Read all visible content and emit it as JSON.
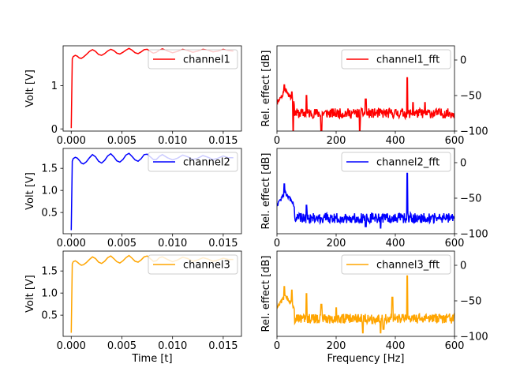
{
  "chart_data": [
    {
      "type": "line",
      "panel": "time",
      "channel": "channel1",
      "color": "#ff0000",
      "series": [
        {
          "name": "channel1",
          "x": [
            0,
            0.0001,
            0.0002,
            0.0004,
            0.0006,
            0.0008,
            0.001,
            0.0012,
            0.0015,
            0.0018,
            0.0021,
            0.0024,
            0.0027,
            0.003,
            0.0033,
            0.0036,
            0.0039,
            0.0042,
            0.0045,
            0.0048,
            0.0051,
            0.0054,
            0.0057,
            0.006,
            0.0063,
            0.0066,
            0.0069,
            0.0072,
            0.0075,
            0.0078,
            0.0081,
            0.0084,
            0.0087,
            0.009,
            0.0095,
            0.01,
            0.0105,
            0.011,
            0.0115,
            0.012,
            0.0125,
            0.013,
            0.0135,
            0.014,
            0.0145,
            0.015,
            0.0155,
            0.016
          ],
          "y": [
            0.02,
            1.62,
            1.67,
            1.7,
            1.68,
            1.64,
            1.63,
            1.66,
            1.72,
            1.79,
            1.83,
            1.79,
            1.72,
            1.7,
            1.74,
            1.8,
            1.84,
            1.81,
            1.75,
            1.73,
            1.77,
            1.82,
            1.86,
            1.82,
            1.76,
            1.74,
            1.78,
            1.83,
            1.84,
            1.79,
            1.75,
            1.77,
            1.82,
            1.85,
            1.8,
            1.76,
            1.79,
            1.84,
            1.81,
            1.77,
            1.8,
            1.84,
            1.82,
            1.78,
            1.8,
            1.84,
            1.81,
            1.8
          ]
        }
      ],
      "xlim": [
        -0.0008,
        0.0168
      ],
      "ylim": [
        -0.05,
        1.92
      ],
      "xticks": [
        "0.000",
        "0.005",
        "0.010",
        "0.015"
      ],
      "xtick_values": [
        0,
        0.005,
        0.01,
        0.015
      ],
      "yticks": [
        "0",
        "1"
      ],
      "ytick_values": [
        0,
        1
      ],
      "ylabel": "Volt [V]",
      "xlabel": "",
      "legend_loc": "upper right"
    },
    {
      "type": "line",
      "panel": "fft",
      "channel": "channel1_fft",
      "color": "#ff0000",
      "series": [
        {
          "name": "channel1_fft"
        }
      ],
      "fft_model": {
        "peaks": [
          [
            25,
            -35
          ],
          [
            50,
            -45
          ],
          [
            100,
            -50
          ],
          [
            150,
            -55
          ],
          [
            300,
            -55
          ],
          [
            440,
            -25
          ],
          [
            460,
            -60
          ],
          [
            500,
            -60
          ]
        ],
        "dips": [
          [
            55,
            -100
          ],
          [
            150,
            -100
          ],
          [
            280,
            -100
          ]
        ],
        "floor": -75,
        "seed": 11
      },
      "xlim": [
        0,
        600
      ],
      "ylim": [
        -100,
        20
      ],
      "xticks": [
        "0",
        "200",
        "400",
        "600"
      ],
      "xtick_values": [
        0,
        200,
        400,
        600
      ],
      "yticks": [
        "0",
        "−50",
        "−100"
      ],
      "ytick_values": [
        0,
        -50,
        -100
      ],
      "ylabel": "Rel. effect [dB]",
      "xlabel": "",
      "legend_loc": "upper right"
    },
    {
      "type": "line",
      "panel": "time",
      "channel": "channel2",
      "color": "#0000ff",
      "series": [
        {
          "name": "channel2",
          "x": [
            0,
            0.0001,
            0.0002,
            0.0004,
            0.0006,
            0.0008,
            0.001,
            0.0012,
            0.0015,
            0.0018,
            0.0021,
            0.0024,
            0.0027,
            0.003,
            0.0033,
            0.0036,
            0.0039,
            0.0042,
            0.0045,
            0.0048,
            0.0051,
            0.0054,
            0.0057,
            0.006,
            0.0063,
            0.0066,
            0.0069,
            0.0072,
            0.0075,
            0.0078,
            0.0081,
            0.0084,
            0.0087,
            0.009,
            0.0095,
            0.01,
            0.0105,
            0.011,
            0.0115,
            0.012,
            0.0125,
            0.013,
            0.0135,
            0.014,
            0.0145,
            0.015,
            0.0155,
            0.016
          ],
          "y": [
            0.1,
            1.66,
            1.72,
            1.75,
            1.73,
            1.68,
            1.62,
            1.6,
            1.65,
            1.74,
            1.81,
            1.76,
            1.66,
            1.62,
            1.68,
            1.78,
            1.83,
            1.76,
            1.67,
            1.64,
            1.7,
            1.8,
            1.84,
            1.77,
            1.69,
            1.66,
            1.72,
            1.81,
            1.82,
            1.76,
            1.7,
            1.7,
            1.77,
            1.81,
            1.74,
            1.69,
            1.73,
            1.8,
            1.76,
            1.7,
            1.73,
            1.79,
            1.75,
            1.7,
            1.73,
            1.78,
            1.74,
            1.74
          ]
        }
      ],
      "xlim": [
        -0.0008,
        0.0168
      ],
      "ylim": [
        0.02,
        1.95
      ],
      "xticks": [
        "0.000",
        "0.005",
        "0.010",
        "0.015"
      ],
      "xtick_values": [
        0,
        0.005,
        0.01,
        0.015
      ],
      "yticks": [
        "0.5",
        "1.0",
        "1.5"
      ],
      "ytick_values": [
        0.5,
        1.0,
        1.5
      ],
      "ylabel": "Volt [V]",
      "xlabel": "",
      "legend_loc": "upper right"
    },
    {
      "type": "line",
      "panel": "fft",
      "channel": "channel2_fft",
      "color": "#0000ff",
      "series": [
        {
          "name": "channel2_fft"
        }
      ],
      "fft_model": {
        "peaks": [
          [
            25,
            -30
          ],
          [
            50,
            -55
          ],
          [
            100,
            -60
          ],
          [
            440,
            -15
          ]
        ],
        "dips": [
          [
            350,
            -92
          ],
          [
            300,
            -90
          ]
        ],
        "floor": -78,
        "seed": 22
      },
      "xlim": [
        0,
        600
      ],
      "ylim": [
        -100,
        20
      ],
      "xticks": [
        "0",
        "200",
        "400",
        "600"
      ],
      "xtick_values": [
        0,
        200,
        400,
        600
      ],
      "yticks": [
        "0",
        "−50",
        "−100"
      ],
      "ytick_values": [
        0,
        -50,
        -100
      ],
      "ylabel": "Rel. effect [dB]",
      "xlabel": "",
      "legend_loc": "upper right"
    },
    {
      "type": "line",
      "panel": "time",
      "channel": "channel3",
      "color": "#ffa500",
      "series": [
        {
          "name": "channel3",
          "x": [
            0,
            0.0001,
            0.0002,
            0.0004,
            0.0006,
            0.0008,
            0.001,
            0.0012,
            0.0015,
            0.0018,
            0.0021,
            0.0024,
            0.0027,
            0.003,
            0.0033,
            0.0036,
            0.0039,
            0.0042,
            0.0045,
            0.0048,
            0.0051,
            0.0054,
            0.0057,
            0.006,
            0.0063,
            0.0066,
            0.0069,
            0.0072,
            0.0075,
            0.0078,
            0.0081,
            0.0084,
            0.0087,
            0.009,
            0.0095,
            0.01,
            0.0105,
            0.011,
            0.0115,
            0.012,
            0.0125,
            0.013,
            0.0135,
            0.014,
            0.0145,
            0.015,
            0.0155,
            0.016
          ],
          "y": [
            0.1,
            1.66,
            1.71,
            1.73,
            1.7,
            1.66,
            1.63,
            1.64,
            1.69,
            1.76,
            1.82,
            1.78,
            1.7,
            1.67,
            1.72,
            1.8,
            1.84,
            1.78,
            1.71,
            1.68,
            1.73,
            1.8,
            1.85,
            1.79,
            1.72,
            1.7,
            1.75,
            1.82,
            1.84,
            1.78,
            1.72,
            1.73,
            1.8,
            1.82,
            1.76,
            1.71,
            1.75,
            1.81,
            1.78,
            1.72,
            1.75,
            1.8,
            1.77,
            1.72,
            1.75,
            1.79,
            1.76,
            1.76
          ]
        }
      ],
      "xlim": [
        -0.0008,
        0.0168
      ],
      "ylim": [
        0.02,
        1.95
      ],
      "xticks": [
        "0.000",
        "0.005",
        "0.010",
        "0.015"
      ],
      "xtick_values": [
        0,
        0.005,
        0.01,
        0.015
      ],
      "yticks": [
        "0.5",
        "1.0",
        "1.5"
      ],
      "ytick_values": [
        0.5,
        1.0,
        1.5
      ],
      "ylabel": "Volt [V]",
      "xlabel": "Time [t]",
      "legend_loc": "upper right"
    },
    {
      "type": "line",
      "panel": "fft",
      "channel": "channel3_fft",
      "color": "#ffa500",
      "series": [
        {
          "name": "channel3_fft"
        }
      ],
      "fft_model": {
        "peaks": [
          [
            25,
            -30
          ],
          [
            50,
            -35
          ],
          [
            100,
            -40
          ],
          [
            150,
            -55
          ],
          [
            200,
            -60
          ],
          [
            440,
            -15
          ],
          [
            390,
            -45
          ]
        ],
        "dips": [
          [
            290,
            -95
          ],
          [
            350,
            -95
          ],
          [
            360,
            -90
          ]
        ],
        "floor": -75,
        "seed": 33
      },
      "xlim": [
        0,
        600
      ],
      "ylim": [
        -100,
        20
      ],
      "xticks": [
        "0",
        "200",
        "400",
        "600"
      ],
      "xtick_values": [
        0,
        200,
        400,
        600
      ],
      "yticks": [
        "0",
        "−50",
        "−100"
      ],
      "ytick_values": [
        0,
        -50,
        -100
      ],
      "ylabel": "Rel. effect [dB]",
      "xlabel": "Frequency [Hz]",
      "legend_loc": "upper right"
    }
  ]
}
